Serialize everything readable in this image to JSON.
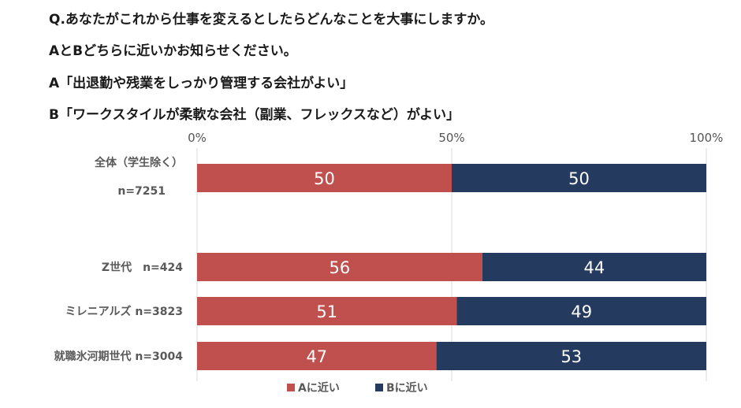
{
  "question": {
    "line1": "Q.あなたがこれから仕事を変えるとしたらどんなことを大事にしますか。",
    "line2": "AとBどちらに近いかお知らせください。",
    "line3": "A「出退勤や残業をしっかり管理する会社がよい」",
    "line4": "B「ワークスタイルが柔軟な会社（副業、フレックスなど）がよい」"
  },
  "chart_data": {
    "type": "bar",
    "orientation": "horizontal",
    "stacked": true,
    "xlim": [
      0,
      100
    ],
    "x_ticks": [
      "0%",
      "50%",
      "100%"
    ],
    "grid": true,
    "legend_position": "bottom",
    "categories": [
      {
        "label": [
          "全体（学生除く）",
          "n=7251"
        ]
      },
      {
        "label": [
          "Z世代　n=424"
        ]
      },
      {
        "label": [
          "ミレニアルズ n=3823"
        ]
      },
      {
        "label": [
          "就職氷河期世代 n=3004"
        ]
      }
    ],
    "series": [
      {
        "name": "Aに近い",
        "color": "#c0504d",
        "values": [
          50,
          56,
          51,
          47
        ]
      },
      {
        "name": "Bに近い",
        "color": "#243a5e",
        "values": [
          50,
          44,
          49,
          53
        ]
      }
    ]
  }
}
